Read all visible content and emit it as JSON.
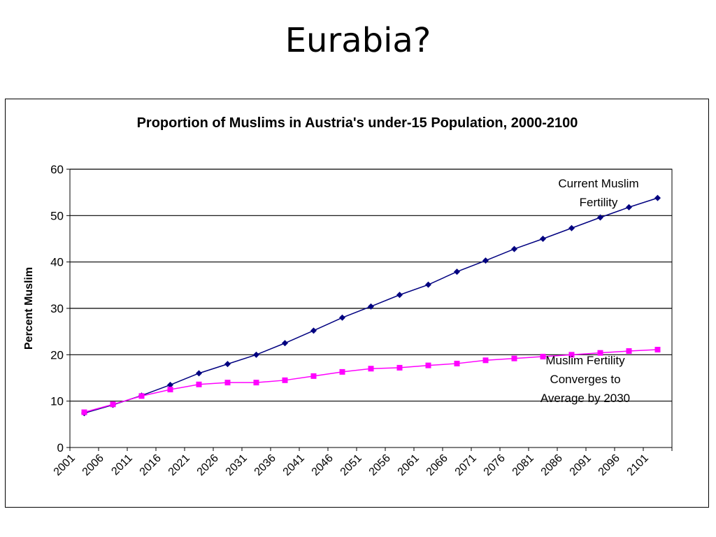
{
  "slide": {
    "title": "Eurabia?"
  },
  "chart_data": {
    "type": "line",
    "title": "Proportion of Muslims in Austria's under-15 Population, 2000-2100",
    "xlabel": "",
    "ylabel": "Percent Muslim",
    "ylim": [
      0,
      60
    ],
    "yticks": [
      0,
      10,
      20,
      30,
      40,
      50,
      60
    ],
    "grid": "horizontal",
    "legend": "none",
    "x": [
      "2001",
      "2006",
      "2011",
      "2016",
      "2021",
      "2026",
      "2031",
      "2036",
      "2041",
      "2046",
      "2051",
      "2056",
      "2061",
      "2066",
      "2071",
      "2076",
      "2081",
      "2086",
      "2091",
      "2096",
      "2101"
    ],
    "series": [
      {
        "name": "Current Muslim Fertility",
        "color": "#000080",
        "marker": "diamond",
        "values": [
          7.4,
          9.2,
          11.2,
          13.5,
          16.0,
          18.0,
          20.0,
          22.5,
          25.2,
          28.0,
          30.4,
          32.9,
          35.1,
          37.9,
          40.3,
          42.8,
          45.0,
          47.3,
          49.6,
          51.8,
          53.8
        ]
      },
      {
        "name": "Muslim Fertility Converges to Average by 2030",
        "color": "#ff00ff",
        "marker": "square",
        "values": [
          7.6,
          9.3,
          11.1,
          12.5,
          13.6,
          14.0,
          14.0,
          14.5,
          15.4,
          16.3,
          17.0,
          17.2,
          17.7,
          18.1,
          18.8,
          19.2,
          19.6,
          20.0,
          20.4,
          20.8,
          21.1
        ]
      }
    ],
    "annotations": [
      {
        "id": "current",
        "lines": [
          "Current Muslim",
          "Fertility"
        ]
      },
      {
        "id": "converge",
        "lines": [
          "Muslim Fertility",
          "Converges to",
          "Average by 2030"
        ]
      }
    ]
  }
}
